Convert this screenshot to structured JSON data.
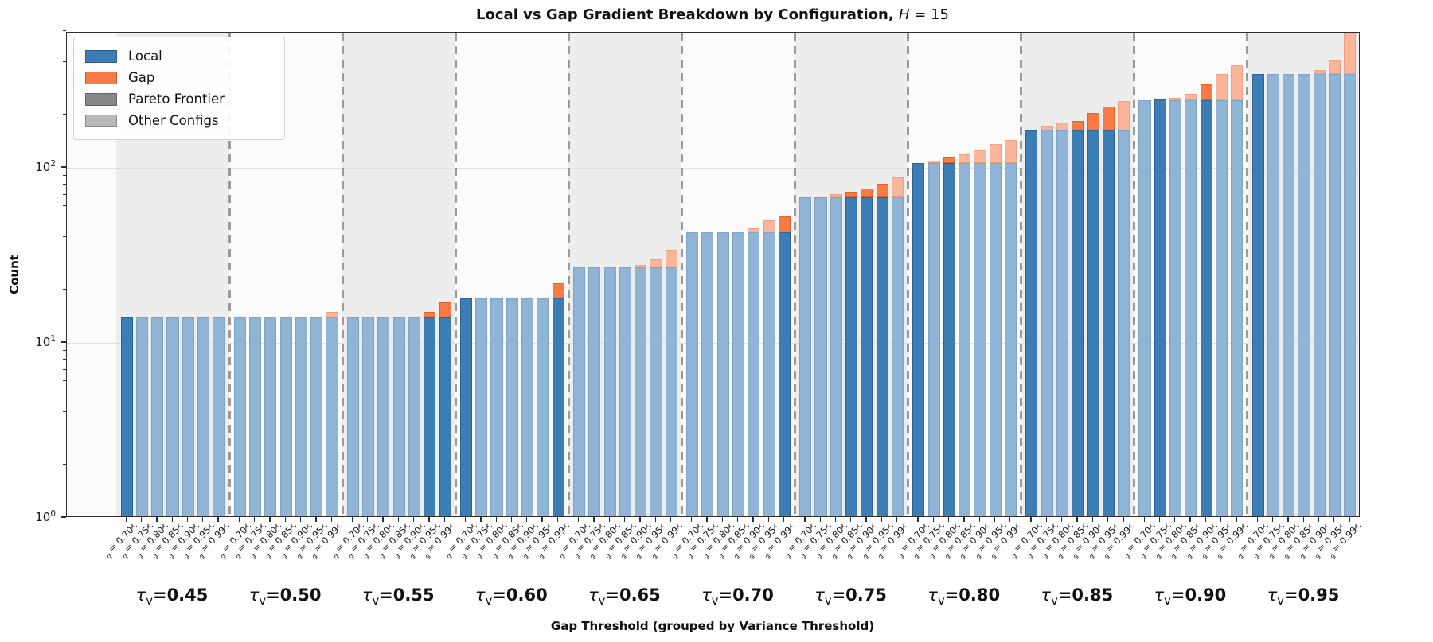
{
  "title": {
    "text": "Local vs Gap Gradient Breakdown by Configuration, ",
    "math_var": "H",
    "math_rest": " = 15"
  },
  "axes": {
    "ylabel": "Count",
    "xlabel": "Gap Threshold (grouped by Variance Threshold)",
    "yticks": [
      {
        "mantissa": "10",
        "exp": "0",
        "value": 1
      },
      {
        "mantissa": "10",
        "exp": "1",
        "value": 10
      },
      {
        "mantissa": "10",
        "exp": "2",
        "value": 100
      }
    ]
  },
  "legend": {
    "items": [
      {
        "label": "Local",
        "color": "#3c7db6"
      },
      {
        "label": "Gap",
        "color": "#f97a45"
      },
      {
        "label": "Pareto Frontier",
        "color": "#878787"
      },
      {
        "label": "Other Configs",
        "color": "#b9b9b9"
      }
    ]
  },
  "colors": {
    "local_pareto": "#3c7db6",
    "local_other": "#90b4d6",
    "gap_pareto": "#f97a45",
    "gap_other": "#fbb59b",
    "band_shade": "#ededed",
    "separator": "#9b9b9b",
    "grid": "#dfdfdf"
  },
  "chart_data": {
    "type": "bar",
    "stacked": true,
    "log_scale": true,
    "ylim": [
      1,
      600
    ],
    "grid": "horizontal-major",
    "legend_position": "upper-left",
    "group_symbol": "τ_v",
    "tick_symbol": "τ_g",
    "tau_g_values": [
      "0.70",
      "0.75",
      "0.80",
      "0.85",
      "0.90",
      "0.95",
      "0.99"
    ],
    "groups": [
      {
        "tau_v": "0.45",
        "shaded": true,
        "bars": [
          {
            "tau_g": "0.70",
            "local": 14,
            "gap": 0,
            "pareto": true
          },
          {
            "tau_g": "0.75",
            "local": 14,
            "gap": 0,
            "pareto": false
          },
          {
            "tau_g": "0.80",
            "local": 14,
            "gap": 0,
            "pareto": false
          },
          {
            "tau_g": "0.85",
            "local": 14,
            "gap": 0,
            "pareto": false
          },
          {
            "tau_g": "0.90",
            "local": 14,
            "gap": 0,
            "pareto": false
          },
          {
            "tau_g": "0.95",
            "local": 14,
            "gap": 0,
            "pareto": false
          },
          {
            "tau_g": "0.99",
            "local": 14,
            "gap": 0,
            "pareto": false
          }
        ]
      },
      {
        "tau_v": "0.50",
        "shaded": false,
        "bars": [
          {
            "tau_g": "0.70",
            "local": 14,
            "gap": 0,
            "pareto": false
          },
          {
            "tau_g": "0.75",
            "local": 14,
            "gap": 0,
            "pareto": false
          },
          {
            "tau_g": "0.80",
            "local": 14,
            "gap": 0,
            "pareto": false
          },
          {
            "tau_g": "0.85",
            "local": 14,
            "gap": 0,
            "pareto": false
          },
          {
            "tau_g": "0.90",
            "local": 14,
            "gap": 0,
            "pareto": false
          },
          {
            "tau_g": "0.95",
            "local": 14,
            "gap": 0,
            "pareto": false
          },
          {
            "tau_g": "0.99",
            "local": 14,
            "gap": 1,
            "pareto": false
          }
        ]
      },
      {
        "tau_v": "0.55",
        "shaded": true,
        "bars": [
          {
            "tau_g": "0.70",
            "local": 14,
            "gap": 0,
            "pareto": false
          },
          {
            "tau_g": "0.75",
            "local": 14,
            "gap": 0,
            "pareto": false
          },
          {
            "tau_g": "0.80",
            "local": 14,
            "gap": 0,
            "pareto": false
          },
          {
            "tau_g": "0.85",
            "local": 14,
            "gap": 0,
            "pareto": false
          },
          {
            "tau_g": "0.90",
            "local": 14,
            "gap": 0,
            "pareto": false
          },
          {
            "tau_g": "0.95",
            "local": 14,
            "gap": 1,
            "pareto": true
          },
          {
            "tau_g": "0.99",
            "local": 14,
            "gap": 3,
            "pareto": true
          }
        ]
      },
      {
        "tau_v": "0.60",
        "shaded": false,
        "bars": [
          {
            "tau_g": "0.70",
            "local": 18,
            "gap": 0,
            "pareto": true
          },
          {
            "tau_g": "0.75",
            "local": 18,
            "gap": 0,
            "pareto": false
          },
          {
            "tau_g": "0.80",
            "local": 18,
            "gap": 0,
            "pareto": false
          },
          {
            "tau_g": "0.85",
            "local": 18,
            "gap": 0,
            "pareto": false
          },
          {
            "tau_g": "0.90",
            "local": 18,
            "gap": 0,
            "pareto": false
          },
          {
            "tau_g": "0.95",
            "local": 18,
            "gap": 0,
            "pareto": false
          },
          {
            "tau_g": "0.99",
            "local": 18,
            "gap": 4,
            "pareto": true
          }
        ]
      },
      {
        "tau_v": "0.65",
        "shaded": true,
        "bars": [
          {
            "tau_g": "0.70",
            "local": 27,
            "gap": 0,
            "pareto": false
          },
          {
            "tau_g": "0.75",
            "local": 27,
            "gap": 0,
            "pareto": false
          },
          {
            "tau_g": "0.80",
            "local": 27,
            "gap": 0,
            "pareto": false
          },
          {
            "tau_g": "0.85",
            "local": 27,
            "gap": 0,
            "pareto": false
          },
          {
            "tau_g": "0.90",
            "local": 27,
            "gap": 1,
            "pareto": false
          },
          {
            "tau_g": "0.95",
            "local": 27,
            "gap": 3,
            "pareto": false
          },
          {
            "tau_g": "0.99",
            "local": 27,
            "gap": 7,
            "pareto": false
          }
        ]
      },
      {
        "tau_v": "0.70",
        "shaded": false,
        "bars": [
          {
            "tau_g": "0.70",
            "local": 43,
            "gap": 0,
            "pareto": false
          },
          {
            "tau_g": "0.75",
            "local": 43,
            "gap": 0,
            "pareto": false
          },
          {
            "tau_g": "0.80",
            "local": 43,
            "gap": 0,
            "pareto": false
          },
          {
            "tau_g": "0.85",
            "local": 43,
            "gap": 0,
            "pareto": false
          },
          {
            "tau_g": "0.90",
            "local": 43,
            "gap": 2,
            "pareto": false
          },
          {
            "tau_g": "0.95",
            "local": 43,
            "gap": 7,
            "pareto": false
          },
          {
            "tau_g": "0.99",
            "local": 43,
            "gap": 10,
            "pareto": true
          }
        ]
      },
      {
        "tau_v": "0.75",
        "shaded": true,
        "bars": [
          {
            "tau_g": "0.70",
            "local": 68,
            "gap": 0,
            "pareto": false
          },
          {
            "tau_g": "0.75",
            "local": 68,
            "gap": 0,
            "pareto": false
          },
          {
            "tau_g": "0.80",
            "local": 68,
            "gap": 3,
            "pareto": false
          },
          {
            "tau_g": "0.85",
            "local": 68,
            "gap": 5,
            "pareto": true
          },
          {
            "tau_g": "0.90",
            "local": 68,
            "gap": 8,
            "pareto": true
          },
          {
            "tau_g": "0.95",
            "local": 68,
            "gap": 13,
            "pareto": true
          },
          {
            "tau_g": "0.99",
            "local": 68,
            "gap": 20,
            "pareto": false
          }
        ]
      },
      {
        "tau_v": "0.80",
        "shaded": false,
        "bars": [
          {
            "tau_g": "0.70",
            "local": 106,
            "gap": 0,
            "pareto": true
          },
          {
            "tau_g": "0.75",
            "local": 106,
            "gap": 4,
            "pareto": false
          },
          {
            "tau_g": "0.80",
            "local": 106,
            "gap": 10,
            "pareto": true
          },
          {
            "tau_g": "0.85",
            "local": 106,
            "gap": 14,
            "pareto": false
          },
          {
            "tau_g": "0.90",
            "local": 106,
            "gap": 20,
            "pareto": false
          },
          {
            "tau_g": "0.95",
            "local": 106,
            "gap": 31,
            "pareto": false
          },
          {
            "tau_g": "0.99",
            "local": 106,
            "gap": 38,
            "pareto": false
          }
        ]
      },
      {
        "tau_v": "0.85",
        "shaded": true,
        "bars": [
          {
            "tau_g": "0.70",
            "local": 164,
            "gap": 0,
            "pareto": true
          },
          {
            "tau_g": "0.75",
            "local": 164,
            "gap": 8,
            "pareto": false
          },
          {
            "tau_g": "0.80",
            "local": 164,
            "gap": 18,
            "pareto": false
          },
          {
            "tau_g": "0.85",
            "local": 164,
            "gap": 21,
            "pareto": true
          },
          {
            "tau_g": "0.90",
            "local": 164,
            "gap": 42,
            "pareto": true
          },
          {
            "tau_g": "0.95",
            "local": 164,
            "gap": 61,
            "pareto": true
          },
          {
            "tau_g": "0.99",
            "local": 164,
            "gap": 76,
            "pareto": false
          }
        ]
      },
      {
        "tau_v": "0.90",
        "shaded": false,
        "bars": [
          {
            "tau_g": "0.70",
            "local": 244,
            "gap": 0,
            "pareto": false
          },
          {
            "tau_g": "0.75",
            "local": 245,
            "gap": 0,
            "pareto": true
          },
          {
            "tau_g": "0.80",
            "local": 244,
            "gap": 8,
            "pareto": false
          },
          {
            "tau_g": "0.85",
            "local": 244,
            "gap": 20,
            "pareto": false
          },
          {
            "tau_g": "0.90",
            "local": 244,
            "gap": 56,
            "pareto": true
          },
          {
            "tau_g": "0.95",
            "local": 244,
            "gap": 101,
            "pareto": false
          },
          {
            "tau_g": "0.99",
            "local": 244,
            "gap": 143,
            "pareto": false
          }
        ]
      },
      {
        "tau_v": "0.95",
        "shaded": true,
        "bars": [
          {
            "tau_g": "0.70",
            "local": 345,
            "gap": 0,
            "pareto": true
          },
          {
            "tau_g": "0.75",
            "local": 345,
            "gap": 0,
            "pareto": false
          },
          {
            "tau_g": "0.80",
            "local": 345,
            "gap": 0,
            "pareto": false
          },
          {
            "tau_g": "0.85",
            "local": 345,
            "gap": 0,
            "pareto": false
          },
          {
            "tau_g": "0.90",
            "local": 345,
            "gap": 18,
            "pareto": false
          },
          {
            "tau_g": "0.95",
            "local": 345,
            "gap": 65,
            "pareto": false
          },
          {
            "tau_g": "0.99",
            "local": 345,
            "gap": 265,
            "pareto": false
          }
        ]
      }
    ]
  }
}
